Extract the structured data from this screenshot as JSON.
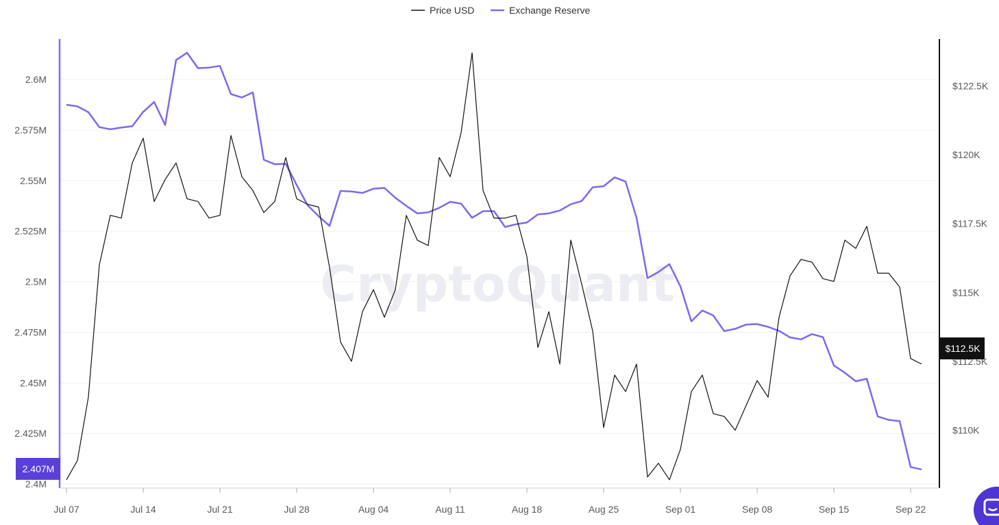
{
  "watermark": "CryptoQuant",
  "colors": {
    "price": "#111111",
    "reserve": "#7b68ee",
    "left_badge": "#5b3fd9",
    "right_badge": "#111111",
    "grid": "#f0f0f0",
    "chat_button": "#4f35d2"
  },
  "chat_icon": "chat-bubble-icon",
  "chart_data": {
    "type": "line",
    "title": "",
    "legend_position": "top-center",
    "grid": true,
    "x": [
      "2025-07-07",
      "2025-07-08",
      "2025-07-09",
      "2025-07-10",
      "2025-07-11",
      "2025-07-12",
      "2025-07-13",
      "2025-07-14",
      "2025-07-15",
      "2025-07-16",
      "2025-07-17",
      "2025-07-18",
      "2025-07-19",
      "2025-07-20",
      "2025-07-21",
      "2025-07-22",
      "2025-07-23",
      "2025-07-24",
      "2025-07-25",
      "2025-07-26",
      "2025-07-27",
      "2025-07-28",
      "2025-07-29",
      "2025-07-30",
      "2025-07-31",
      "2025-08-01",
      "2025-08-02",
      "2025-08-03",
      "2025-08-04",
      "2025-08-05",
      "2025-08-06",
      "2025-08-07",
      "2025-08-08",
      "2025-08-09",
      "2025-08-10",
      "2025-08-11",
      "2025-08-12",
      "2025-08-13",
      "2025-08-14",
      "2025-08-15",
      "2025-08-16",
      "2025-08-17",
      "2025-08-18",
      "2025-08-19",
      "2025-08-20",
      "2025-08-21",
      "2025-08-22",
      "2025-08-23",
      "2025-08-24",
      "2025-08-25",
      "2025-08-26",
      "2025-08-27",
      "2025-08-28",
      "2025-08-29",
      "2025-08-30",
      "2025-08-31",
      "2025-09-01",
      "2025-09-02",
      "2025-09-03",
      "2025-09-04",
      "2025-09-05",
      "2025-09-06",
      "2025-09-07",
      "2025-09-08",
      "2025-09-09",
      "2025-09-10",
      "2025-09-11",
      "2025-09-12",
      "2025-09-13",
      "2025-09-14",
      "2025-09-15",
      "2025-09-16",
      "2025-09-17",
      "2025-09-18",
      "2025-09-19",
      "2025-09-20",
      "2025-09-21",
      "2025-09-22",
      "2025-09-23"
    ],
    "x_tick_labels": [
      "Jul 07",
      "Jul 14",
      "Jul 21",
      "Jul 28",
      "Aug 04",
      "Aug 11",
      "Aug 18",
      "Aug 25",
      "Sep 01",
      "Sep 08",
      "Sep 15",
      "Sep 22"
    ],
    "x_tick_indices": [
      0,
      7,
      14,
      21,
      28,
      35,
      42,
      49,
      56,
      63,
      70,
      77
    ],
    "y_left": {
      "ticks": [
        2400000,
        2425000,
        2450000,
        2475000,
        2500000,
        2525000,
        2550000,
        2575000,
        2600000
      ],
      "tick_labels": [
        "2.4M",
        "2.425M",
        "2.45M",
        "2.475M",
        "2.5M",
        "2.525M",
        "2.55M",
        "2.575M",
        "2.6M"
      ],
      "range": [
        2398000,
        2620000
      ]
    },
    "y_right": {
      "ticks": [
        110000,
        112500,
        115000,
        117500,
        120000,
        122500
      ],
      "tick_labels": [
        "$110K",
        "$112.5K",
        "$115K",
        "$117.5K",
        "$120K",
        "$122.5K"
      ],
      "range": [
        107900,
        124200
      ]
    },
    "series": [
      {
        "name": "Price USD",
        "axis": "right",
        "values": [
          108200,
          108900,
          111200,
          116000,
          117800,
          117700,
          119700,
          120600,
          118300,
          119100,
          119700,
          118400,
          118300,
          117700,
          117800,
          120700,
          119200,
          118700,
          117900,
          118300,
          119900,
          118400,
          118200,
          118100,
          115900,
          113200,
          112500,
          114300,
          115100,
          114100,
          115100,
          117800,
          116900,
          116700,
          119900,
          119200,
          120800,
          123700,
          118700,
          117700,
          117700,
          117800,
          116300,
          113000,
          114300,
          112400,
          116900,
          115300,
          113600,
          110100,
          112000,
          111400,
          112400,
          108300,
          108800,
          108200,
          109300,
          111400,
          112000,
          110600,
          110500,
          110000,
          110900,
          111800,
          111200,
          114100,
          115600,
          116200,
          116100,
          115500,
          115400,
          116900,
          116600,
          117400,
          115700,
          115700,
          115200,
          112600,
          112400
        ]
      },
      {
        "name": "Exchange Reserve",
        "axis": "left",
        "values": [
          2587500,
          2586700,
          2583800,
          2576400,
          2575400,
          2576200,
          2576900,
          2584000,
          2588900,
          2577500,
          2609600,
          2613200,
          2605600,
          2605900,
          2606700,
          2592800,
          2591100,
          2593600,
          2560300,
          2558100,
          2558300,
          2547800,
          2537800,
          2532400,
          2527600,
          2544900,
          2544600,
          2543900,
          2546000,
          2546400,
          2541500,
          2537500,
          2533800,
          2534300,
          2536500,
          2539500,
          2538600,
          2531600,
          2534900,
          2534900,
          2527100,
          2528400,
          2529300,
          2533300,
          2533800,
          2535200,
          2538300,
          2539900,
          2546700,
          2547200,
          2551600,
          2549500,
          2531600,
          2501800,
          2504800,
          2508700,
          2497700,
          2480400,
          2485800,
          2483300,
          2475600,
          2476700,
          2478800,
          2479100,
          2477700,
          2475700,
          2472500,
          2471500,
          2474100,
          2472600,
          2458600,
          2455000,
          2450800,
          2452000,
          2433400,
          2431700,
          2431100,
          2408400,
          2407200
        ]
      }
    ],
    "current_value_badges": {
      "left": "2.407M",
      "right": "$112.5K"
    }
  }
}
